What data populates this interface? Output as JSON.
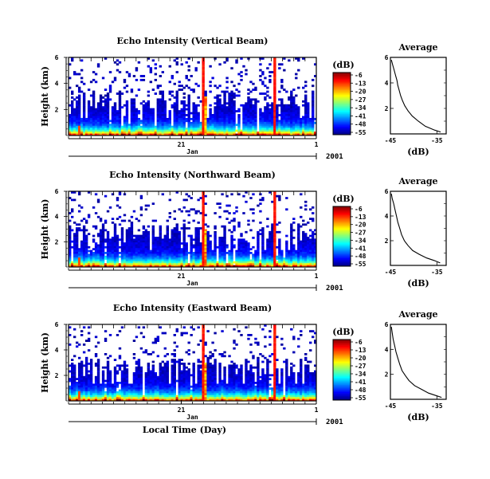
{
  "chart_data": [
    {
      "type": "heatmap",
      "title": "Echo Intensity (Vertical Beam)",
      "ylabel": "Height (km)",
      "yticks": [
        "6",
        "4",
        "2"
      ],
      "xticks": [
        "21",
        "1"
      ],
      "month_label": "Jan",
      "year_label": "2001",
      "colorbar_unit": "(dB)",
      "colorbar_ticks": [
        "-6",
        "-13",
        "-20",
        "-27",
        "-34",
        "-41",
        "-48",
        "-55"
      ],
      "profile": {
        "title": "Average",
        "xlabel": "(dB)",
        "xticks": [
          "-45",
          "-35"
        ],
        "yticks": [
          "6",
          "4",
          "2"
        ],
        "xlim": [
          -45,
          -33
        ],
        "ylim": [
          0,
          6
        ],
        "points": [
          [
            -44.8,
            5.8
          ],
          [
            -44.5,
            5.4
          ],
          [
            -44.2,
            5.0
          ],
          [
            -43.9,
            4.6
          ],
          [
            -43.6,
            4.2
          ],
          [
            -43.4,
            3.8
          ],
          [
            -43.1,
            3.4
          ],
          [
            -42.8,
            3.0
          ],
          [
            -42.4,
            2.6
          ],
          [
            -41.9,
            2.2
          ],
          [
            -41.2,
            1.8
          ],
          [
            -40.3,
            1.4
          ],
          [
            -39.0,
            1.0
          ],
          [
            -37.5,
            0.6
          ],
          [
            -35.5,
            0.3
          ],
          [
            -34.2,
            0.15
          ]
        ]
      }
    },
    {
      "type": "heatmap",
      "title": "Echo Intensity (Northward Beam)",
      "ylabel": "Height (km)",
      "yticks": [
        "6",
        "4",
        "2"
      ],
      "xticks": [
        "21",
        "1"
      ],
      "month_label": "Jan",
      "year_label": "2001",
      "colorbar_unit": "(dB)",
      "colorbar_ticks": [
        "-6",
        "-13",
        "-20",
        "-27",
        "-34",
        "-41",
        "-48",
        "-55"
      ],
      "profile": {
        "title": "Average",
        "xlabel": "(dB)",
        "xticks": [
          "-45",
          "-35"
        ],
        "yticks": [
          "6",
          "4",
          "2"
        ],
        "xlim": [
          -45,
          -33
        ],
        "ylim": [
          0,
          6
        ],
        "points": [
          [
            -44.8,
            5.8
          ],
          [
            -44.6,
            5.4
          ],
          [
            -44.3,
            5.0
          ],
          [
            -44.0,
            4.5
          ],
          [
            -43.7,
            4.0
          ],
          [
            -43.4,
            3.5
          ],
          [
            -43.0,
            3.0
          ],
          [
            -42.6,
            2.5
          ],
          [
            -42.0,
            2.0
          ],
          [
            -41.2,
            1.6
          ],
          [
            -40.2,
            1.2
          ],
          [
            -38.8,
            0.9
          ],
          [
            -37.2,
            0.6
          ],
          [
            -35.6,
            0.4
          ],
          [
            -34.3,
            0.2
          ]
        ]
      }
    },
    {
      "type": "heatmap",
      "title": "Echo Intensity (Eastward Beam)",
      "ylabel": "Height (km)",
      "yticks": [
        "6",
        "4",
        "2"
      ],
      "xticks": [
        "21",
        "1"
      ],
      "month_label": "Jan",
      "year_label": "2001",
      "xlabel": "Local Time (Day)",
      "colorbar_unit": "(dB)",
      "colorbar_ticks": [
        "-6",
        "-13",
        "-20",
        "-27",
        "-34",
        "-41",
        "-48",
        "-55"
      ],
      "profile": {
        "title": "Average",
        "xlabel": "(dB)",
        "xticks": [
          "-45",
          "-35"
        ],
        "yticks": [
          "6",
          "4",
          "2"
        ],
        "xlim": [
          -45,
          -33
        ],
        "ylim": [
          0,
          6
        ],
        "points": [
          [
            -44.8,
            5.8
          ],
          [
            -44.6,
            5.3
          ],
          [
            -44.4,
            4.8
          ],
          [
            -44.1,
            4.3
          ],
          [
            -43.8,
            3.8
          ],
          [
            -43.4,
            3.3
          ],
          [
            -43.0,
            2.8
          ],
          [
            -42.5,
            2.3
          ],
          [
            -41.8,
            1.9
          ],
          [
            -41.0,
            1.5
          ],
          [
            -39.8,
            1.1
          ],
          [
            -38.3,
            0.8
          ],
          [
            -36.8,
            0.5
          ],
          [
            -35.2,
            0.3
          ],
          [
            -34.0,
            0.15
          ]
        ]
      }
    }
  ]
}
